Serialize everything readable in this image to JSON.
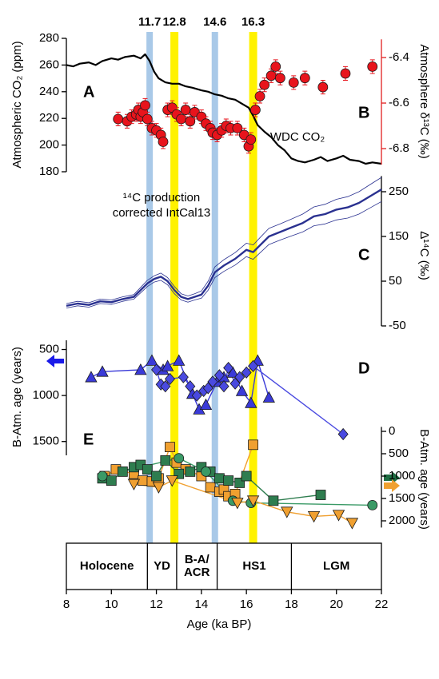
{
  "x_axis": {
    "xlim": [
      8,
      22
    ],
    "xticks": [
      8,
      10,
      12,
      14,
      16,
      18,
      20,
      22
    ],
    "label": "Age (ka BP)"
  },
  "events": {
    "values": [
      11.7,
      12.8,
      14.6,
      16.3
    ],
    "colors": [
      "#a9c9e8",
      "#fff200",
      "#a9c9e8",
      "#fff200"
    ]
  },
  "periods": {
    "bounds": [
      8,
      11.6,
      12.9,
      14.7,
      18,
      22
    ],
    "labels": [
      [
        "Holocene"
      ],
      [
        "YD"
      ],
      [
        "B-A/",
        "ACR"
      ],
      [
        "HS1"
      ],
      [
        "LGM"
      ]
    ]
  },
  "chart_data": [
    {
      "type": "line",
      "panel_label": "A",
      "ylabel": "Atmospheric CO₂ (ppm)",
      "y_side": "left",
      "axis_color": "#000000",
      "ylim": [
        180,
        280
      ],
      "yticks": [
        180,
        200,
        220,
        240,
        260,
        280
      ],
      "annotation": [
        "WDC CO₂"
      ],
      "x": [
        8,
        8.3,
        8.6,
        9,
        9.3,
        9.6,
        10,
        10.3,
        10.6,
        11,
        11.3,
        11.5,
        11.7,
        11.9,
        12.1,
        12.4,
        12.7,
        13,
        13.3,
        13.6,
        14,
        14.3,
        14.6,
        14.9,
        15.2,
        15.5,
        15.8,
        16.1,
        16.3,
        16.5,
        16.8,
        17.1,
        17.4,
        17.7,
        18,
        18.3,
        18.6,
        19,
        19.3,
        19.6,
        20,
        20.3,
        20.6,
        21,
        21.3,
        21.6,
        22
      ],
      "series": [
        {
          "color": "#000000",
          "width": 2.2,
          "values": [
            260,
            259,
            261,
            262,
            260,
            263,
            265,
            264,
            266,
            267,
            265,
            268,
            263,
            255,
            250,
            247,
            246,
            246,
            244,
            243,
            241,
            240,
            238,
            237,
            235,
            234,
            231,
            228,
            222,
            215,
            210,
            206,
            200,
            196,
            190,
            188,
            187,
            189,
            191,
            188,
            190,
            192,
            189,
            188,
            186,
            187,
            186
          ]
        }
      ]
    },
    {
      "type": "scatter",
      "panel_label": "B",
      "ylabel": "Atmosphere δ¹³C (‰)",
      "y_side": "right",
      "axis_color": "#e02020",
      "ylim": [
        -6.87,
        -6.32
      ],
      "yticks": [
        -6.4,
        -6.6,
        -6.8
      ],
      "error": 0.03,
      "series": [
        {
          "color": "#e8141c",
          "marker": "circle",
          "connect": false,
          "x": [
            10.3,
            10.7,
            10.9,
            11.1,
            11.2,
            11.3,
            11.4,
            11.5,
            11.6,
            11.8,
            12.0,
            12.2,
            12.3,
            12.5,
            12.7,
            12.9,
            13.1,
            13.3,
            13.5,
            13.7,
            14.0,
            14.2,
            14.4,
            14.5,
            14.7,
            14.9,
            15.1,
            15.3,
            15.6,
            15.9,
            16.1,
            16.2,
            16.4,
            16.6,
            16.8,
            17.1,
            17.3,
            17.5,
            18.1,
            18.6,
            19.4,
            20.4,
            21.6
          ],
          "values": [
            -6.67,
            -6.68,
            -6.66,
            -6.65,
            -6.63,
            -6.66,
            -6.64,
            -6.61,
            -6.67,
            -6.71,
            -6.72,
            -6.74,
            -6.77,
            -6.63,
            -6.62,
            -6.65,
            -6.67,
            -6.63,
            -6.68,
            -6.64,
            -6.66,
            -6.69,
            -6.71,
            -6.73,
            -6.74,
            -6.72,
            -6.7,
            -6.71,
            -6.71,
            -6.74,
            -6.79,
            -6.76,
            -6.63,
            -6.57,
            -6.52,
            -6.48,
            -6.44,
            -6.49,
            -6.51,
            -6.49,
            -6.53,
            -6.47,
            -6.44
          ]
        }
      ]
    },
    {
      "type": "line",
      "panel_label": "C",
      "ylabel": "Δ¹⁴C (‰)",
      "y_side": "right",
      "axis_color": "#000000",
      "ylim": [
        -50,
        285
      ],
      "yticks": [
        -50,
        50,
        150,
        250
      ],
      "annotation": [
        "¹⁴C production",
        "corrected IntCal13"
      ],
      "x": [
        8,
        8.5,
        9,
        9.5,
        10,
        10.5,
        11,
        11.3,
        11.6,
        11.9,
        12.2,
        12.5,
        12.8,
        13.1,
        13.4,
        13.7,
        14,
        14.3,
        14.6,
        15,
        15.5,
        16,
        16.3,
        16.6,
        17,
        17.5,
        18,
        18.5,
        19,
        19.5,
        20,
        20.5,
        21,
        21.5,
        22
      ],
      "series": [
        {
          "color": "#2a3190",
          "width": 2.4,
          "values": [
            -5,
            0,
            -3,
            5,
            3,
            10,
            15,
            30,
            45,
            55,
            60,
            50,
            30,
            15,
            10,
            15,
            20,
            40,
            70,
            85,
            100,
            120,
            115,
            130,
            150,
            160,
            170,
            180,
            195,
            200,
            210,
            215,
            225,
            240,
            255
          ],
          "upper": [
            0,
            5,
            2,
            10,
            8,
            15,
            20,
            36,
            52,
            62,
            68,
            58,
            38,
            22,
            17,
            22,
            28,
            50,
            82,
            98,
            114,
            135,
            131,
            147,
            168,
            178,
            189,
            200,
            216,
            222,
            233,
            239,
            250,
            266,
            282
          ],
          "lower": [
            -10,
            -5,
            -8,
            0,
            -2,
            5,
            10,
            24,
            38,
            48,
            52,
            42,
            22,
            8,
            3,
            8,
            12,
            30,
            58,
            72,
            86,
            105,
            99,
            113,
            132,
            142,
            151,
            160,
            174,
            178,
            187,
            191,
            200,
            214,
            228
          ]
        }
      ]
    },
    {
      "type": "scatter",
      "panel_label": "D",
      "ylabel": "B-Atm. age (years)",
      "y_side": "left",
      "axis_color": "#000000",
      "y_inverted": true,
      "ylim": [
        400,
        1650
      ],
      "yticks": [
        500,
        1000,
        1500
      ],
      "series": [
        {
          "color": "#3a3ad8",
          "marker": "triangle-up",
          "connect": true,
          "x": [
            9.1,
            9.6,
            11.3,
            11.8,
            12.3,
            12.5,
            13.0,
            13.6,
            13.9,
            14.2,
            14.7,
            15.0,
            15.4,
            15.8,
            16.2,
            16.5,
            17.0
          ],
          "values": [
            800,
            740,
            720,
            620,
            720,
            680,
            620,
            980,
            1150,
            1100,
            850,
            800,
            750,
            950,
            1080,
            620,
            1020
          ]
        },
        {
          "color": "#4a4ae0",
          "marker": "diamond",
          "connect": true,
          "x": [
            12.0,
            12.2,
            12.4,
            12.6,
            13.2,
            13.5,
            13.8,
            14.1,
            14.3,
            14.5,
            14.8,
            15.0,
            15.2,
            15.5,
            15.7,
            16.0,
            16.3,
            20.3
          ],
          "values": [
            720,
            880,
            900,
            820,
            800,
            900,
            1000,
            950,
            920,
            850,
            780,
            900,
            700,
            870,
            800,
            750,
            680,
            1420
          ]
        }
      ]
    },
    {
      "type": "scatter",
      "panel_label": "E",
      "ylabel": "B-Atm. age (years)",
      "y_side": "right",
      "axis_color": "#000000",
      "y_inverted": true,
      "ylim": [
        -100,
        2150
      ],
      "yticks": [
        0,
        500,
        1000,
        1500,
        2000
      ],
      "series": [
        {
          "color": "#f0a030",
          "marker": "square",
          "connect": true,
          "x": [
            9.7,
            10.2,
            11.0,
            11.4,
            11.8,
            12.1,
            12.6,
            12.9,
            13.3,
            14.0,
            14.4,
            14.8,
            15.0,
            15.2,
            15.5,
            16.3
          ],
          "values": [
            1000,
            850,
            950,
            1100,
            1120,
            1050,
            350,
            700,
            850,
            1000,
            1250,
            1350,
            1300,
            1450,
            1400,
            300
          ]
        },
        {
          "color": "#2e7d4f",
          "marker": "square",
          "connect": true,
          "x": [
            9.6,
            10.0,
            10.5,
            11.0,
            11.3,
            11.6,
            12.0,
            12.4,
            13.0,
            13.5,
            14.0,
            14.4,
            14.8,
            15.2,
            15.7,
            16.0,
            17.2,
            19.3
          ],
          "values": [
            1050,
            1100,
            900,
            800,
            750,
            850,
            1000,
            650,
            950,
            900,
            800,
            900,
            1050,
            1100,
            1150,
            1000,
            1550,
            1420
          ]
        },
        {
          "color": "#3a9a66",
          "marker": "circle",
          "connect": true,
          "x": [
            9.6,
            13.0,
            14.2,
            15.4,
            16.2,
            21.6
          ],
          "values": [
            1000,
            600,
            900,
            1550,
            1600,
            1650
          ]
        },
        {
          "color": "#f0a030",
          "marker": "triangle-down",
          "connect": true,
          "x": [
            11.0,
            12.1,
            12.7,
            15.6,
            16.3,
            17.8,
            19.0,
            20.1,
            20.7
          ],
          "values": [
            1180,
            1250,
            1100,
            1600,
            1550,
            1800,
            1900,
            1870,
            2050
          ]
        }
      ]
    }
  ]
}
